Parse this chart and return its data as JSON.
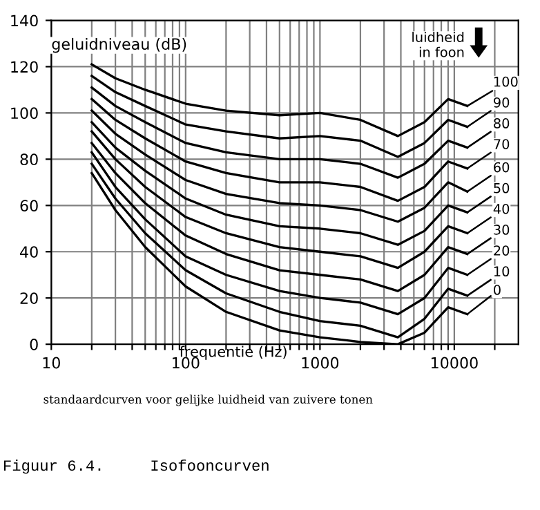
{
  "chart_data": {
    "type": "line",
    "ylabel": "geluidniveau (dB)",
    "xlabel": "frequentie (Hz)",
    "x": [
      20,
      30,
      50,
      100,
      200,
      500,
      1000,
      2000,
      3800,
      6000,
      9000,
      12500
    ],
    "series": [
      {
        "name": "100",
        "color": "#000000",
        "values": [
          121,
          115,
          110,
          104,
          101,
          99,
          100,
          97,
          90,
          96,
          106,
          103
        ]
      },
      {
        "name": "90",
        "color": "#000000",
        "values": [
          116,
          109,
          103,
          95,
          92,
          89,
          90,
          88,
          81,
          87,
          97,
          94
        ]
      },
      {
        "name": "80",
        "color": "#000000",
        "values": [
          111,
          103,
          96,
          87,
          83,
          80,
          80,
          78,
          72,
          78,
          88,
          85
        ]
      },
      {
        "name": "70",
        "color": "#000000",
        "values": [
          106,
          97,
          89,
          79,
          74,
          70,
          70,
          68,
          62,
          68,
          79,
          76
        ]
      },
      {
        "name": "60",
        "color": "#000000",
        "values": [
          101,
          91,
          82,
          71,
          65,
          61,
          60,
          58,
          53,
          59,
          70,
          66
        ]
      },
      {
        "name": "50",
        "color": "#000000",
        "values": [
          96,
          85,
          75,
          63,
          56,
          51,
          50,
          48,
          43,
          49,
          60,
          57
        ]
      },
      {
        "name": "40",
        "color": "#000000",
        "values": [
          92,
          80,
          68,
          55,
          48,
          42,
          40,
          38,
          33,
          40,
          51,
          48
        ]
      },
      {
        "name": "30",
        "color": "#000000",
        "values": [
          87,
          74,
          61,
          47,
          39,
          32,
          30,
          28,
          23,
          30,
          42,
          39
        ]
      },
      {
        "name": "20",
        "color": "#000000",
        "values": [
          83,
          68,
          54,
          38,
          30,
          23,
          20,
          18,
          13,
          20,
          33,
          30
        ]
      },
      {
        "name": "10",
        "color": "#000000",
        "values": [
          78,
          63,
          48,
          32,
          22,
          14,
          10,
          8,
          3,
          11,
          24,
          21
        ]
      },
      {
        "name": "0",
        "color": "#000000",
        "values": [
          74,
          58,
          42,
          25,
          14,
          6,
          3,
          1,
          0,
          5,
          16,
          13
        ]
      }
    ],
    "log": "x",
    "xlim": [
      10,
      30000
    ],
    "xticks": [
      10,
      {
        "value": 20,
        "label": null
      },
      {
        "value": 30,
        "label": null
      },
      {
        "value": 40,
        "label": null
      },
      {
        "value": 50,
        "label": null
      },
      {
        "value": 60,
        "label": null
      },
      {
        "value": 70,
        "label": null
      },
      {
        "value": 80,
        "label": null
      },
      {
        "value": 90,
        "label": null
      },
      100,
      {
        "value": 200,
        "label": null
      },
      {
        "value": 300,
        "label": null
      },
      {
        "value": 400,
        "label": null
      },
      {
        "value": 500,
        "label": null
      },
      {
        "value": 600,
        "label": null
      },
      {
        "value": 700,
        "label": null
      },
      {
        "value": 800,
        "label": null
      },
      {
        "value": 900,
        "label": null
      },
      1000,
      {
        "value": 2000,
        "label": null
      },
      {
        "value": 3000,
        "label": null
      },
      {
        "value": 4000,
        "label": null
      },
      {
        "value": 5000,
        "label": null
      },
      {
        "value": 6000,
        "label": null
      },
      {
        "value": 7000,
        "label": null
      },
      {
        "value": 8000,
        "label": null
      },
      {
        "value": 9000,
        "label": null
      },
      10000,
      {
        "value": 20000,
        "label": null
      }
    ],
    "ylim": [
      0,
      140
    ],
    "yticks": [
      0,
      20,
      40,
      60,
      80,
      100,
      120,
      140
    ],
    "grid": true,
    "legend": "right",
    "marker": "none",
    "line_style": "solid",
    "annotations": [
      "luidheid\nin foon",
      "standaardcurven voor gelijke luidheid van zuivere tonen",
      "Figuur 6.4.     Isofooncurven"
    ]
  }
}
